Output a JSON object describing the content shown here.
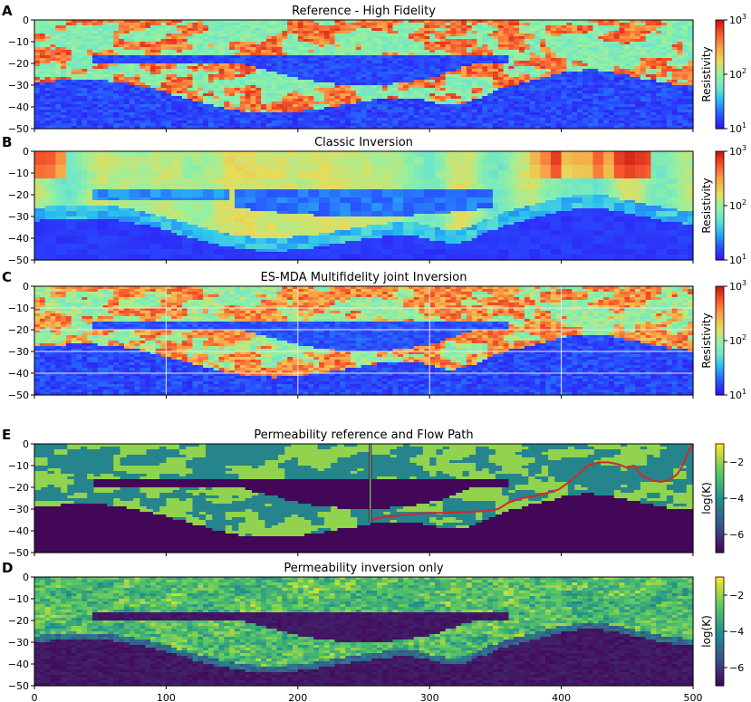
{
  "chart_data": [
    {
      "type": "heatmap",
      "panel_letter": "A",
      "title": "Reference - High Fidelity",
      "colormap": "jet",
      "colorbar_label": "Resistivity",
      "colorbar_scale": "log",
      "colorbar_range": [
        10,
        1000
      ],
      "colorbar_ticks": [
        {
          "value": 10,
          "base": "10",
          "exp": "1"
        },
        {
          "value": 100,
          "base": "10",
          "exp": "2"
        },
        {
          "value": 1000,
          "base": "10",
          "exp": "3"
        }
      ],
      "xlim": [
        0,
        500
      ],
      "ylim": [
        -50,
        0
      ],
      "yticks": [
        "0",
        "−10",
        "−20",
        "−30",
        "−40",
        "−50"
      ],
      "xticks": []
    },
    {
      "type": "heatmap",
      "panel_letter": "B",
      "title": "Classic Inversion",
      "colormap": "jet",
      "colorbar_label": "Resistivity",
      "colorbar_scale": "log",
      "colorbar_range": [
        10,
        1000
      ],
      "colorbar_ticks": [
        {
          "value": 10,
          "base": "10",
          "exp": "1"
        },
        {
          "value": 100,
          "base": "10",
          "exp": "2"
        },
        {
          "value": 1000,
          "base": "10",
          "exp": "3"
        }
      ],
      "xlim": [
        0,
        500
      ],
      "ylim": [
        -50,
        0
      ],
      "yticks": [
        "0",
        "−10",
        "−20",
        "−30",
        "−40",
        "−50"
      ],
      "xticks": []
    },
    {
      "type": "heatmap",
      "panel_letter": "C",
      "title": "ES-MDA Multifidelity joint Inversion",
      "colormap": "jet",
      "colorbar_label": "Resistivity",
      "colorbar_scale": "log",
      "colorbar_range": [
        10,
        1000
      ],
      "colorbar_ticks": [
        {
          "value": 10,
          "base": "10",
          "exp": "1"
        },
        {
          "value": 100,
          "base": "10",
          "exp": "2"
        },
        {
          "value": 1000,
          "base": "10",
          "exp": "3"
        }
      ],
      "xlim": [
        0,
        500
      ],
      "ylim": [
        -50,
        0
      ],
      "yticks": [
        "0",
        "−10",
        "−20",
        "−30",
        "−40",
        "−50"
      ],
      "xticks": [],
      "grid": true
    },
    {
      "type": "heatmap",
      "panel_letter": "E",
      "title": "Permeability reference and Flow Path",
      "colormap": "viridis",
      "colorbar_label": "log(K)",
      "colorbar_scale": "linear",
      "colorbar_range": [
        -7,
        -1
      ],
      "colorbar_ticks": [
        {
          "value": -2,
          "label": "−2"
        },
        {
          "value": -4,
          "label": "−4"
        },
        {
          "value": -6,
          "label": "−6"
        }
      ],
      "xlim": [
        0,
        500
      ],
      "ylim": [
        -50,
        0
      ],
      "yticks": [
        "0",
        "−10",
        "−20",
        "−30",
        "−40",
        "−50"
      ],
      "xticks": [],
      "well": {
        "x": 255,
        "y_top": 0,
        "y_bottom": -36
      },
      "flow_path": {
        "color": "#d62728",
        "x": [
          256,
          262,
          275,
          295,
          320,
          340,
          352,
          360,
          370,
          380,
          390,
          398,
          405,
          413,
          420,
          428,
          436,
          444,
          450,
          455,
          462,
          470,
          476,
          482,
          488,
          492,
          495,
          497,
          500
        ],
        "y": [
          -35,
          -34,
          -33,
          -32,
          -31.5,
          -31,
          -30,
          -27,
          -25,
          -24,
          -22.5,
          -21,
          -18,
          -14,
          -10,
          -8.5,
          -8.5,
          -9.5,
          -11,
          -10,
          -15,
          -17,
          -17.5,
          -16.5,
          -14,
          -10,
          -6,
          -3,
          0
        ]
      }
    },
    {
      "type": "heatmap",
      "panel_letter": "D",
      "title": "Permeability inversion only",
      "colormap": "viridis",
      "colorbar_label": "log(K)",
      "colorbar_scale": "linear",
      "colorbar_range": [
        -7,
        -1
      ],
      "colorbar_ticks": [
        {
          "value": -2,
          "label": "−2"
        },
        {
          "value": -4,
          "label": "−4"
        },
        {
          "value": -6,
          "label": "−6"
        }
      ],
      "xlim": [
        0,
        500
      ],
      "ylim": [
        -50,
        0
      ],
      "yticks": [
        "0",
        "−10",
        "−20",
        "−30",
        "−40",
        "−50"
      ],
      "xticks": [
        "0",
        "100",
        "200",
        "300",
        "400",
        "500"
      ]
    }
  ]
}
